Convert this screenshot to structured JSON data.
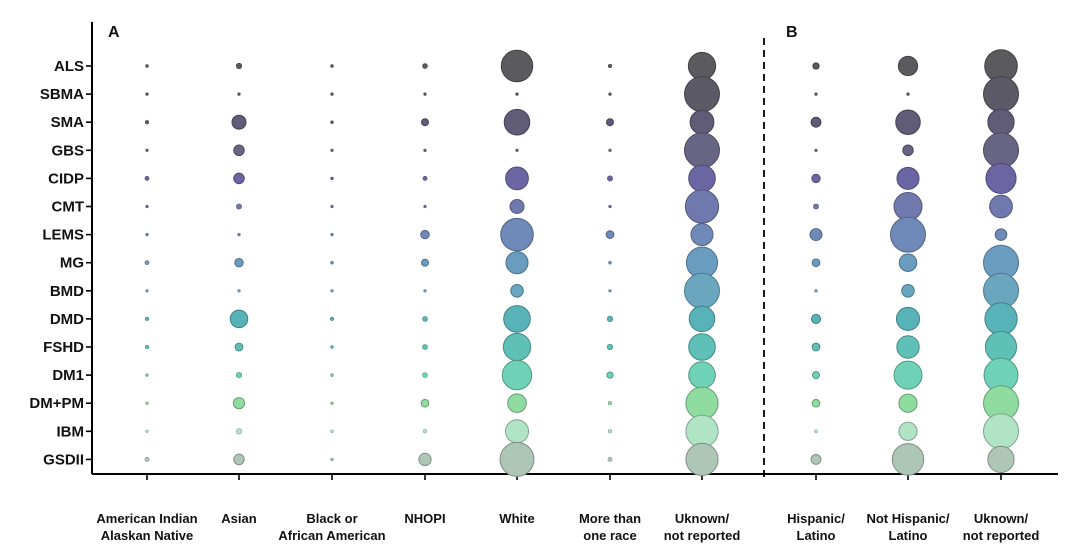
{
  "chart_data": {
    "type": "bubble-matrix",
    "panels": [
      {
        "label": "A",
        "columns": [
          "American Indian\nAlaskan Native",
          "Asian",
          "Black or\nAfrican American",
          "NHOPI",
          "White",
          "More than\none race",
          "Uknown/\nnot reported"
        ]
      },
      {
        "label": "B",
        "columns": [
          "Hispanic/\nLatino",
          "Not Hispanic/\nLatino",
          "Uknown/\nnot reported"
        ]
      }
    ],
    "rows": [
      "ALS",
      "SBMA",
      "SMA",
      "GBS",
      "CIDP",
      "CMT",
      "LEMS",
      "MG",
      "BMD",
      "DMD",
      "FSHD",
      "DM1",
      "DM+PM",
      "IBM",
      "GSDII"
    ],
    "row_colors": [
      "#5a5a5f",
      "#5c5a66",
      "#605b77",
      "#686483",
      "#6b66a3",
      "#7079ad",
      "#6f89b8",
      "#6a9cbf",
      "#6aa6be",
      "#58b3b9",
      "#5ec0b7",
      "#6fd2b6",
      "#8fdba0",
      "#b1e4c5",
      "#aec6b6"
    ],
    "relative_size": [
      [
        0.08,
        0.16,
        0.08,
        0.14,
        0.9,
        0.1,
        0.78,
        0.18,
        0.55,
        0.93
      ],
      [
        0.05,
        0.06,
        0.05,
        0.05,
        0.06,
        0.05,
        1.0,
        0.05,
        0.06,
        1.0
      ],
      [
        0.1,
        0.4,
        0.08,
        0.2,
        0.73,
        0.2,
        0.68,
        0.28,
        0.7,
        0.75
      ],
      [
        0.05,
        0.3,
        0.05,
        0.06,
        0.05,
        0.05,
        1.0,
        0.05,
        0.3,
        1.0
      ],
      [
        0.12,
        0.3,
        0.08,
        0.12,
        0.65,
        0.15,
        0.76,
        0.24,
        0.63,
        0.86
      ],
      [
        0.05,
        0.15,
        0.05,
        0.05,
        0.4,
        0.05,
        0.95,
        0.15,
        0.8,
        0.65
      ],
      [
        0.05,
        0.06,
        0.05,
        0.24,
        0.93,
        0.22,
        0.63,
        0.34,
        1.0,
        0.33
      ],
      [
        0.12,
        0.24,
        0.08,
        0.2,
        0.63,
        0.08,
        0.89,
        0.22,
        0.5,
        1.0
      ],
      [
        0.05,
        0.06,
        0.05,
        0.05,
        0.36,
        0.05,
        1.0,
        0.05,
        0.36,
        1.0
      ],
      [
        0.1,
        0.5,
        0.1,
        0.14,
        0.76,
        0.16,
        0.73,
        0.26,
        0.66,
        0.92
      ],
      [
        0.1,
        0.22,
        0.08,
        0.14,
        0.78,
        0.16,
        0.76,
        0.22,
        0.64,
        0.89
      ],
      [
        0.06,
        0.16,
        0.08,
        0.14,
        0.84,
        0.18,
        0.76,
        0.2,
        0.8,
        0.97
      ],
      [
        0.06,
        0.32,
        0.06,
        0.22,
        0.53,
        0.1,
        0.92,
        0.22,
        0.52,
        1.0
      ],
      [
        0.06,
        0.16,
        0.08,
        0.1,
        0.66,
        0.1,
        0.92,
        0.08,
        0.52,
        1.0
      ],
      [
        0.12,
        0.3,
        0.08,
        0.35,
        0.97,
        0.12,
        0.92,
        0.28,
        0.9,
        0.75
      ]
    ]
  }
}
